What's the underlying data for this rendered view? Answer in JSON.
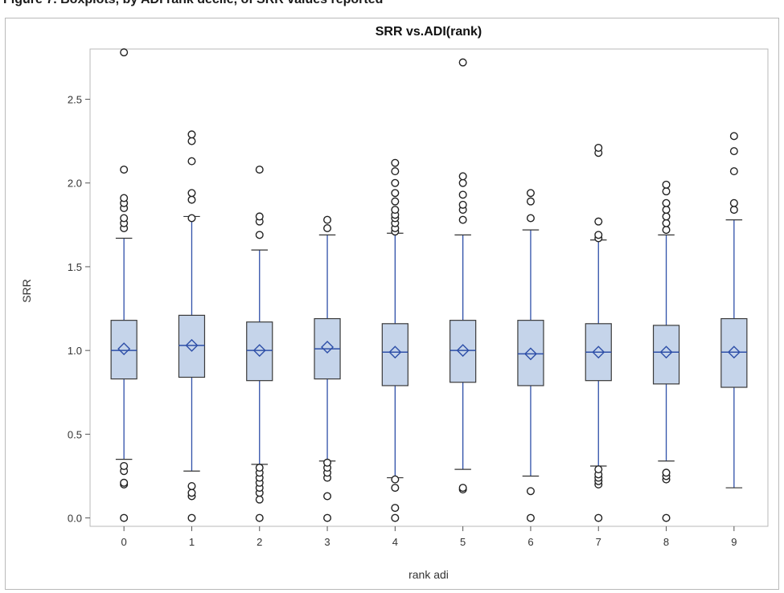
{
  "caption": "Figure 7. Boxplots, by ADI rank decile, of SRR values reported",
  "chart_data": {
    "type": "boxplot",
    "title": "SRR vs.ADI(rank)",
    "xlabel": "rank adi",
    "ylabel": "SRR",
    "ylim": [
      -0.05,
      2.8
    ],
    "yticks": [
      0.0,
      0.5,
      1.0,
      1.5,
      2.0,
      2.5
    ],
    "ytick_labels": [
      "0.0",
      "0.5",
      "1.0",
      "1.5",
      "2.0",
      "2.5"
    ],
    "categories": [
      "0",
      "1",
      "2",
      "3",
      "4",
      "5",
      "6",
      "7",
      "8",
      "9"
    ],
    "grid": false,
    "box_fill": "#c5d4ea",
    "box_stroke": "#3a3a3a",
    "whisker_color": "#2e4fa8",
    "median_color": "#2e4fa8",
    "mean_marker_color": "#2e4fa8",
    "outlier_color": "#222222",
    "boxes": [
      {
        "x": "0",
        "q1": 0.83,
        "median": 1.0,
        "q3": 1.18,
        "mean": 1.01,
        "whisker_low": 0.35,
        "whisker_high": 1.67,
        "outliers": [
          0.0,
          0.2,
          0.21,
          0.28,
          0.31,
          1.73,
          1.76,
          1.79,
          1.85,
          1.88,
          1.91,
          2.08,
          2.78
        ]
      },
      {
        "x": "1",
        "q1": 0.84,
        "median": 1.03,
        "q3": 1.21,
        "mean": 1.03,
        "whisker_low": 0.28,
        "whisker_high": 1.8,
        "outliers": [
          0.0,
          0.13,
          0.15,
          0.19,
          1.79,
          1.9,
          1.94,
          2.13,
          2.25,
          2.29
        ]
      },
      {
        "x": "2",
        "q1": 0.82,
        "median": 1.0,
        "q3": 1.17,
        "mean": 1.0,
        "whisker_low": 0.32,
        "whisker_high": 1.6,
        "outliers": [
          0.0,
          0.11,
          0.15,
          0.18,
          0.21,
          0.24,
          0.27,
          0.3,
          1.69,
          1.77,
          1.8,
          2.08
        ]
      },
      {
        "x": "3",
        "q1": 0.83,
        "median": 1.01,
        "q3": 1.19,
        "mean": 1.02,
        "whisker_low": 0.34,
        "whisker_high": 1.69,
        "outliers": [
          0.0,
          0.13,
          0.24,
          0.27,
          0.3,
          0.33,
          1.73,
          1.78
        ]
      },
      {
        "x": "4",
        "q1": 0.79,
        "median": 0.99,
        "q3": 1.16,
        "mean": 0.99,
        "whisker_low": 0.24,
        "whisker_high": 1.7,
        "outliers": [
          0.0,
          0.06,
          0.18,
          0.23,
          1.71,
          1.73,
          1.76,
          1.79,
          1.81,
          1.84,
          1.89,
          1.94,
          2.0,
          2.07,
          2.12
        ]
      },
      {
        "x": "5",
        "q1": 0.81,
        "median": 1.0,
        "q3": 1.18,
        "mean": 1.0,
        "whisker_low": 0.29,
        "whisker_high": 1.69,
        "outliers": [
          0.17,
          0.18,
          1.78,
          1.84,
          1.87,
          1.93,
          2.0,
          2.04,
          2.72
        ]
      },
      {
        "x": "6",
        "q1": 0.79,
        "median": 0.98,
        "q3": 1.18,
        "mean": 0.98,
        "whisker_low": 0.25,
        "whisker_high": 1.72,
        "outliers": [
          0.0,
          0.16,
          1.79,
          1.89,
          1.94
        ]
      },
      {
        "x": "7",
        "q1": 0.82,
        "median": 0.99,
        "q3": 1.16,
        "mean": 0.99,
        "whisker_low": 0.31,
        "whisker_high": 1.66,
        "outliers": [
          0.0,
          0.2,
          0.22,
          0.24,
          0.26,
          0.29,
          1.67,
          1.69,
          1.77,
          2.18,
          2.21
        ]
      },
      {
        "x": "8",
        "q1": 0.8,
        "median": 0.99,
        "q3": 1.15,
        "mean": 0.99,
        "whisker_low": 0.34,
        "whisker_high": 1.69,
        "outliers": [
          0.0,
          0.23,
          0.25,
          0.27,
          1.72,
          1.76,
          1.8,
          1.84,
          1.88,
          1.95,
          1.99
        ]
      },
      {
        "x": "9",
        "q1": 0.78,
        "median": 0.99,
        "q3": 1.19,
        "mean": 0.99,
        "whisker_low": 0.18,
        "whisker_high": 1.78,
        "outliers": [
          1.84,
          1.88,
          2.07,
          2.19,
          2.28
        ]
      }
    ]
  }
}
